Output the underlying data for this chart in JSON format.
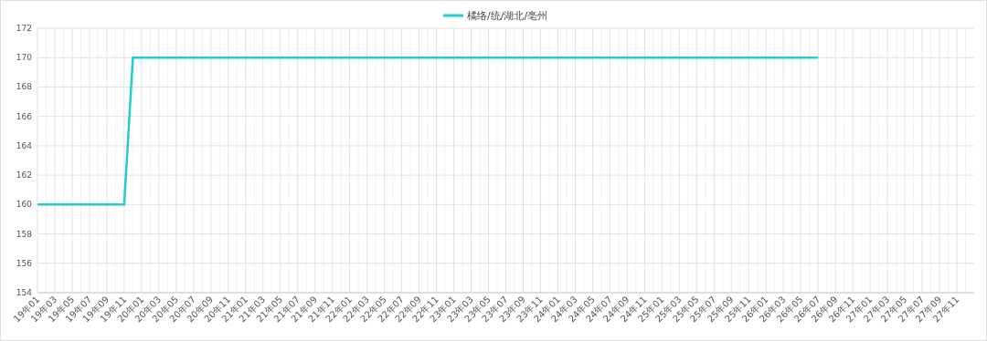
{
  "chart_data": {
    "type": "line",
    "legend": "top",
    "grid": true,
    "ylim": [
      154,
      172
    ],
    "yticks": [
      154,
      156,
      158,
      160,
      162,
      164,
      166,
      168,
      170,
      172
    ],
    "categories": [
      "19年01",
      null,
      "19年03",
      null,
      "19年05",
      null,
      "19年07",
      null,
      "19年09",
      null,
      "19年11",
      null,
      "20年01",
      null,
      "20年03",
      null,
      "20年05",
      null,
      "20年07",
      null,
      "20年09",
      null,
      "20年11",
      null,
      "21年01",
      null,
      "21年03",
      null,
      "21年05",
      null,
      "21年07",
      null,
      "21年09",
      null,
      "21年11",
      null,
      "22年01",
      null,
      "22年03",
      null,
      "22年05",
      null,
      "22年07",
      null,
      "22年09",
      null,
      "22年11",
      null,
      "23年01",
      null,
      "23年03",
      null,
      "23年05",
      null,
      "23年07",
      null,
      "23年09",
      null,
      "23年11",
      null,
      "24年01",
      null,
      "24年03",
      null,
      "24年05",
      null,
      "24年07",
      null,
      "24年09",
      null,
      "24年11",
      null,
      "25年01",
      null,
      "25年03",
      null,
      "25年05",
      null,
      "25年07",
      null,
      "25年09",
      null,
      "25年11",
      null,
      "26年01",
      null,
      "26年03",
      null,
      "26年05",
      null,
      "26年07",
      null,
      "26年09",
      null,
      "26年11",
      null,
      "27年01",
      null,
      "27年03",
      null,
      "27年05",
      null,
      "27年07",
      null,
      "27年09",
      null,
      "27年11",
      null
    ],
    "series": [
      {
        "name": "橘络/统/湖北/亳州",
        "color": "#21cdd0",
        "values": [
          160,
          160,
          160,
          160,
          160,
          160,
          160,
          160,
          160,
          160,
          160,
          170,
          170,
          170,
          170,
          170,
          170,
          170,
          170,
          170,
          170,
          170,
          170,
          170,
          170,
          170,
          170,
          170,
          170,
          170,
          170,
          170,
          170,
          170,
          170,
          170,
          170,
          170,
          170,
          170,
          170,
          170,
          170,
          170,
          170,
          170,
          170,
          170,
          170,
          170,
          170,
          170,
          170,
          170,
          170,
          170,
          170,
          170,
          170,
          170,
          170,
          170,
          170,
          170,
          170,
          170,
          170,
          170,
          170,
          170,
          170,
          170,
          170,
          170,
          170,
          170,
          170,
          170,
          170,
          170,
          170,
          170,
          170,
          170,
          170,
          170,
          170,
          170,
          170,
          170,
          170,
          null,
          null,
          null,
          null,
          null,
          null,
          null,
          null,
          null,
          null,
          null,
          null,
          null,
          null,
          null,
          null,
          null
        ]
      }
    ]
  }
}
